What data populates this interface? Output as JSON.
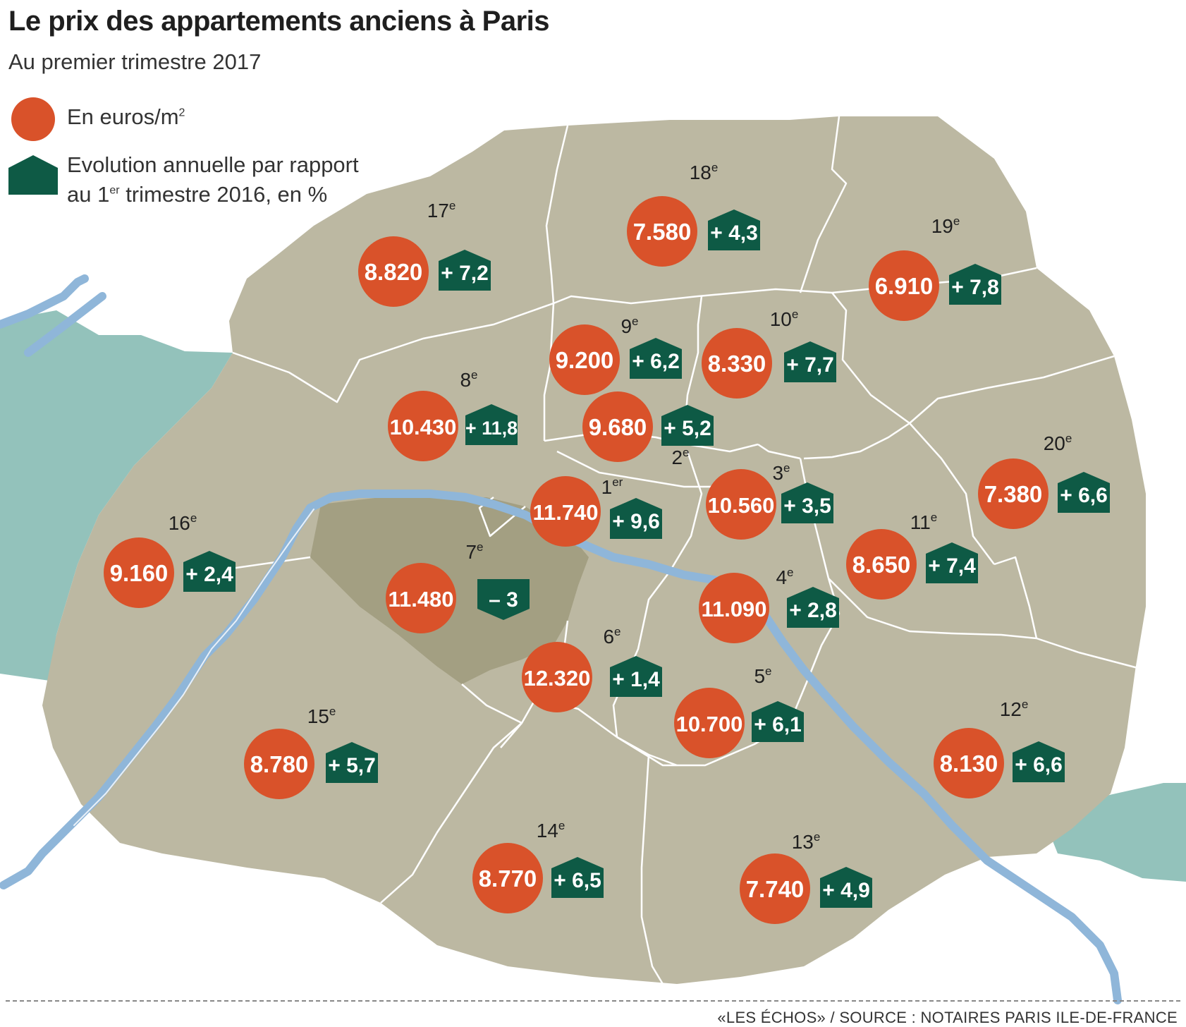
{
  "title": "Le prix des appartements anciens à Paris",
  "subtitle": "Au premier trimestre 2017",
  "legend": {
    "price_label": "En euros/m",
    "price_label_sup": "2",
    "evolution_line1": "Evolution annuelle par rapport",
    "evolution_line2_pre": "au 1",
    "evolution_line2_sup": "er",
    "evolution_line2_post": " trimestre 2016, en %"
  },
  "colors": {
    "price": "#d9522a",
    "evolution": "#0e5a45",
    "land": "#bcb8a2",
    "highlight": "#a39f82",
    "seine": "#8fb6d9",
    "outside_green": "#93c2bb"
  },
  "arrondissements": [
    {
      "num": "1",
      "suffix": "er",
      "price": "11.740",
      "evolution": "+ 9,6"
    },
    {
      "num": "2",
      "suffix": "e",
      "price": "9.680",
      "evolution": "+ 5,2"
    },
    {
      "num": "3",
      "suffix": "e",
      "price": "10.560",
      "evolution": "+ 3,5"
    },
    {
      "num": "4",
      "suffix": "e",
      "price": "11.090",
      "evolution": "+ 2,8"
    },
    {
      "num": "5",
      "suffix": "e",
      "price": "10.700",
      "evolution": "+ 6,1"
    },
    {
      "num": "6",
      "suffix": "e",
      "price": "12.320",
      "evolution": "+ 1,4"
    },
    {
      "num": "7",
      "suffix": "e",
      "price": "11.480",
      "evolution": "– 3",
      "negative": true
    },
    {
      "num": "8",
      "suffix": "e",
      "price": "10.430",
      "evolution": "+ 11,8"
    },
    {
      "num": "9",
      "suffix": "e",
      "price": "9.200",
      "evolution": "+ 6,2"
    },
    {
      "num": "10",
      "suffix": "e",
      "price": "8.330",
      "evolution": "+ 7,7"
    },
    {
      "num": "11",
      "suffix": "e",
      "price": "8.650",
      "evolution": "+ 7,4"
    },
    {
      "num": "12",
      "suffix": "e",
      "price": "8.130",
      "evolution": "+ 6,6"
    },
    {
      "num": "13",
      "suffix": "e",
      "price": "7.740",
      "evolution": "+ 4,9"
    },
    {
      "num": "14",
      "suffix": "e",
      "price": "8.770",
      "evolution": "+ 6,5"
    },
    {
      "num": "15",
      "suffix": "e",
      "price": "8.780",
      "evolution": "+ 5,7"
    },
    {
      "num": "16",
      "suffix": "e",
      "price": "9.160",
      "evolution": "+ 2,4"
    },
    {
      "num": "17",
      "suffix": "e",
      "price": "8.820",
      "evolution": "+ 7,2"
    },
    {
      "num": "18",
      "suffix": "e",
      "price": "7.580",
      "evolution": "+ 4,3"
    },
    {
      "num": "19",
      "suffix": "e",
      "price": "6.910",
      "evolution": "+ 7,8"
    },
    {
      "num": "20",
      "suffix": "e",
      "price": "7.380",
      "evolution": "+ 6,6"
    }
  ],
  "footer": "«LES ÉCHOS» / SOURCE : NOTAIRES PARIS ILE-DE-FRANCE"
}
